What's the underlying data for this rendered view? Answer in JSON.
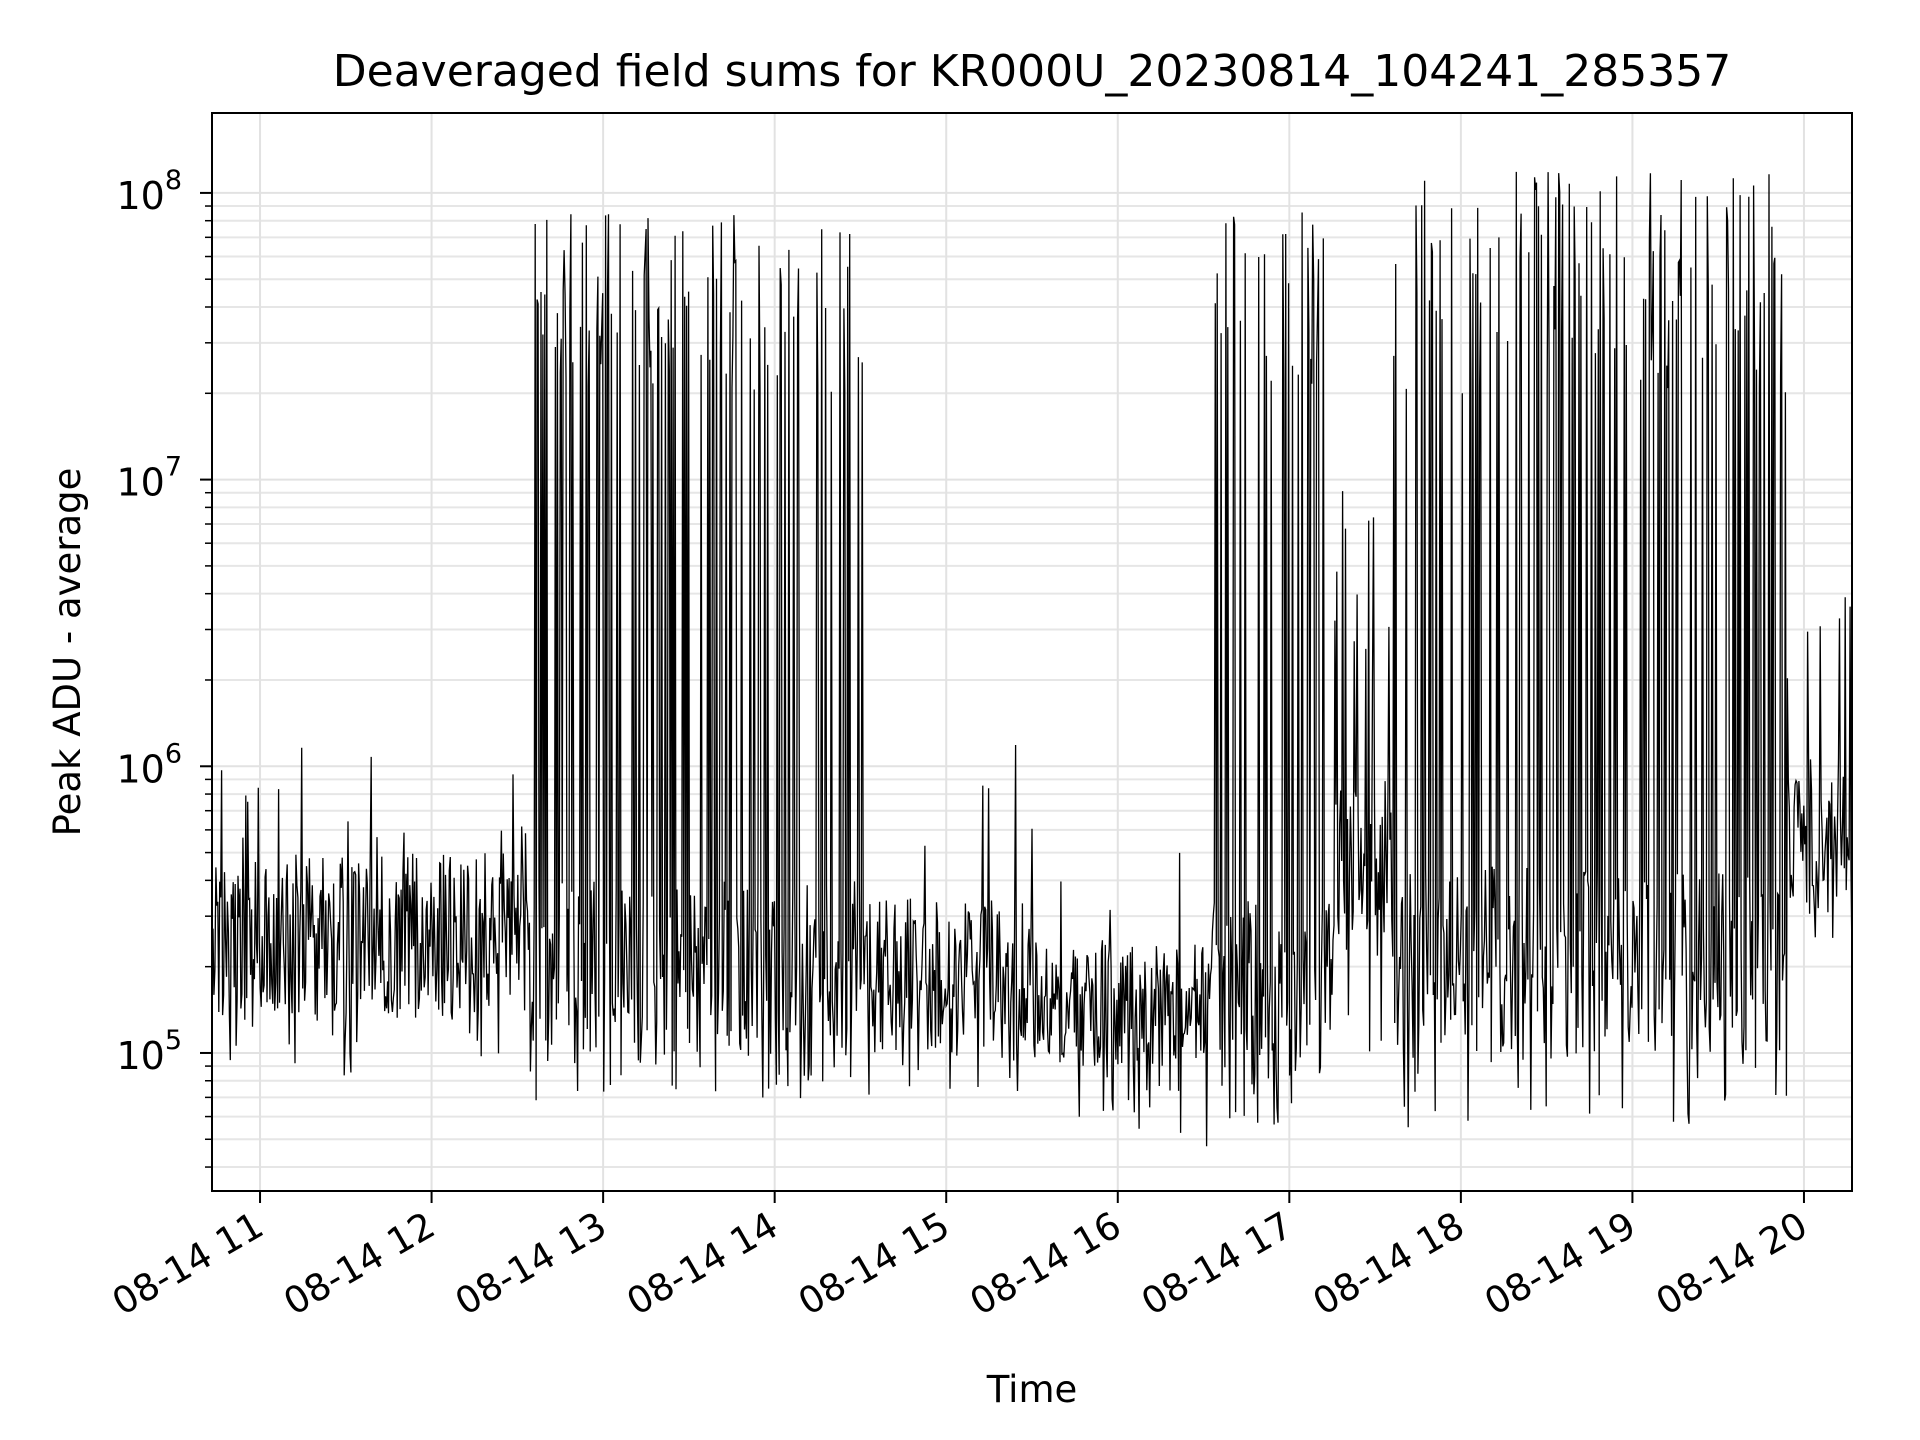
{
  "chart_data": {
    "type": "line",
    "title": "Deaveraged field sums for KR000U_20230814_104241_285357",
    "xlabel": "Time",
    "ylabel": "Peak ADU - average",
    "yscale": "log",
    "ylim": [
      33000,
      190000000
    ],
    "xlim_hours": [
      10.72,
      20.28
    ],
    "grid": true,
    "x_ticks": [
      {
        "hour": 11,
        "label": "08-14 11"
      },
      {
        "hour": 12,
        "label": "08-14 12"
      },
      {
        "hour": 13,
        "label": "08-14 13"
      },
      {
        "hour": 14,
        "label": "08-14 14"
      },
      {
        "hour": 15,
        "label": "08-14 15"
      },
      {
        "hour": 16,
        "label": "08-14 16"
      },
      {
        "hour": 17,
        "label": "08-14 17"
      },
      {
        "hour": 18,
        "label": "08-14 18"
      },
      {
        "hour": 19,
        "label": "08-14 19"
      },
      {
        "hour": 20,
        "label": "08-14 20"
      }
    ],
    "y_ticks": [
      {
        "value": 100000,
        "base": "10",
        "exp": "5"
      },
      {
        "value": 1000000,
        "base": "10",
        "exp": "6"
      },
      {
        "value": 10000000,
        "base": "10",
        "exp": "7"
      },
      {
        "value": 100000000,
        "base": "10",
        "exp": "8"
      }
    ],
    "series": [
      {
        "name": "deaveraged field sums",
        "color": "#000000",
        "segments": [
          {
            "start": 10.72,
            "end": 12.55,
            "base_range": [
              130000,
              500000
            ],
            "spike_prob": 0.05,
            "spike_range": [
              550000,
              1250000
            ],
            "dip_prob": 0.05,
            "dip_range": [
              82000,
              130000
            ]
          },
          {
            "start": 12.55,
            "end": 14.52,
            "base_range": [
              100000,
              400000
            ],
            "spike_prob": 0.28,
            "spike_range": [
              20000000,
              85000000
            ],
            "dip_prob": 0.08,
            "dip_range": [
              68000,
              100000
            ]
          },
          {
            "start": 14.52,
            "end": 15.5,
            "base_range": [
              100000,
              350000
            ],
            "spike_prob": 0.03,
            "spike_range": [
              450000,
              1300000
            ],
            "dip_prob": 0.06,
            "dip_range": [
              70000,
              100000
            ]
          },
          {
            "start": 15.5,
            "end": 16.55,
            "base_range": [
              90000,
              250000
            ],
            "spike_prob": 0.02,
            "spike_range": [
              300000,
              700000
            ],
            "dip_prob": 0.08,
            "dip_range": [
              47000,
              90000
            ]
          },
          {
            "start": 16.55,
            "end": 17.25,
            "base_range": [
              80000,
              350000
            ],
            "spike_prob": 0.32,
            "spike_range": [
              20000000,
              110000000
            ],
            "dip_prob": 0.08,
            "dip_range": [
              55000,
              80000
            ]
          },
          {
            "start": 17.25,
            "end": 17.6,
            "base_range": [
              200000,
              900000
            ],
            "spike_prob": 0.15,
            "spike_range": [
              2000000,
              10000000
            ],
            "dip_prob": 0.03,
            "dip_range": [
              90000,
              150000
            ]
          },
          {
            "start": 17.6,
            "end": 19.9,
            "base_range": [
              100000,
              450000
            ],
            "spike_prob": 0.3,
            "spike_range": [
              20000000,
              120000000
            ],
            "dip_prob": 0.08,
            "dip_range": [
              55000,
              100000
            ]
          },
          {
            "start": 19.9,
            "end": 20.28,
            "base_range": [
              300000,
              1100000
            ],
            "spike_prob": 0.08,
            "spike_range": [
              2000000,
              5000000
            ],
            "dip_prob": 0.05,
            "dip_range": [
              200000,
              300000
            ]
          }
        ]
      }
    ]
  }
}
